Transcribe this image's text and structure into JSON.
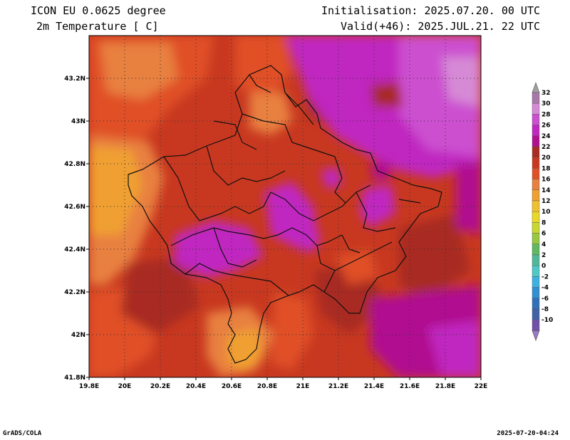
{
  "header": {
    "model": "ICON EU 0.0625 degree",
    "variable": "2m Temperature [ C]",
    "initialisation": "Initialisation: 2025.07.20. 00 UTC",
    "valid": "Valid(+46): 2025.JUL.21. 22 UTC"
  },
  "map": {
    "lon_range": [
      19.8,
      22.0
    ],
    "lat_range": [
      41.8,
      43.4
    ],
    "lon_ticks": [
      "19.8E",
      "20E",
      "20.2E",
      "20.4E",
      "20.6E",
      "20.8E",
      "21E",
      "21.2E",
      "21.4E",
      "21.6E",
      "21.8E",
      "22E"
    ],
    "lat_ticks": [
      "41.8N",
      "42N",
      "42.2N",
      "42.4N",
      "42.6N",
      "42.8N",
      "43N",
      "43.2N"
    ],
    "grid": true
  },
  "colorbar": {
    "labels": [
      "32",
      "30",
      "28",
      "26",
      "24",
      "22",
      "20",
      "18",
      "16",
      "14",
      "12",
      "10",
      "8",
      "6",
      "4",
      "2",
      "0",
      "-2",
      "-4",
      "-6",
      "-8",
      "-10"
    ],
    "colors": [
      "#a878a8",
      "#d68ad6",
      "#cc4fd0",
      "#c026c0",
      "#b01090",
      "#a82c22",
      "#c83820",
      "#e05028",
      "#e88040",
      "#f0a030",
      "#f0c030",
      "#e8d828",
      "#c8d830",
      "#98c840",
      "#60b860",
      "#50b898",
      "#50c8c8",
      "#40b0e0",
      "#3090d0",
      "#3070b8",
      "#4060a8",
      "#7050a8"
    ]
  },
  "footer": {
    "left": "GrADS/COLA",
    "right": "2025-07-20-04:24"
  }
}
